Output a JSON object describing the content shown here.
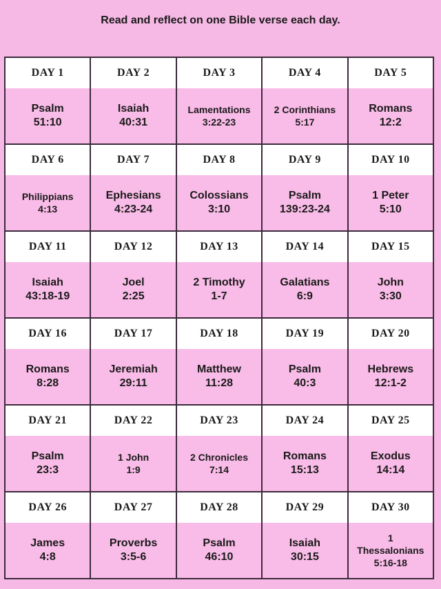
{
  "subtitle": "Read and reflect on one Bible verse each day.",
  "colors": {
    "background": "#f6b8e4",
    "cell": "#f9bbe7",
    "header": "#ffffff"
  },
  "days": [
    {
      "day": "DAY 1",
      "book": "Psalm",
      "ref": "51:10"
    },
    {
      "day": "DAY 2",
      "book": "Isaiah",
      "ref": "40:31"
    },
    {
      "day": "DAY 3",
      "book": "Lamentations",
      "ref": "3:22-23"
    },
    {
      "day": "DAY 4",
      "book": "2 Corinthians",
      "ref": "5:17"
    },
    {
      "day": "DAY 5",
      "book": "Romans",
      "ref": "12:2"
    },
    {
      "day": "DAY 6",
      "book": "Philippians",
      "ref": "4:13"
    },
    {
      "day": "DAY 7",
      "book": "Ephesians",
      "ref": "4:23-24"
    },
    {
      "day": "DAY 8",
      "book": "Colossians",
      "ref": "3:10"
    },
    {
      "day": "DAY 9",
      "book": "Psalm",
      "ref": "139:23-24"
    },
    {
      "day": "DAY 10",
      "book": "1 Peter",
      "ref": "5:10"
    },
    {
      "day": "DAY 11",
      "book": "Isaiah",
      "ref": "43:18-19"
    },
    {
      "day": "DAY 12",
      "book": "Joel",
      "ref": "2:25"
    },
    {
      "day": "DAY 13",
      "book": "2 Timothy",
      "ref": "1-7"
    },
    {
      "day": "DAY 14",
      "book": "Galatians",
      "ref": "6:9"
    },
    {
      "day": "DAY 15",
      "book": "John",
      "ref": "3:30"
    },
    {
      "day": "DAY 16",
      "book": "Romans",
      "ref": "8:28"
    },
    {
      "day": "DAY 17",
      "book": "Jeremiah",
      "ref": "29:11"
    },
    {
      "day": "DAY 18",
      "book": "Matthew",
      "ref": "11:28"
    },
    {
      "day": "DAY 19",
      "book": "Psalm",
      "ref": "40:3"
    },
    {
      "day": "DAY 20",
      "book": "Hebrews",
      "ref": "12:1-2"
    },
    {
      "day": "DAY 21",
      "book": "Psalm",
      "ref": "23:3"
    },
    {
      "day": "DAY 22",
      "book": "1 John",
      "ref": "1:9"
    },
    {
      "day": "DAY 23",
      "book": "2 Chronicles",
      "ref": "7:14"
    },
    {
      "day": "DAY 24",
      "book": "Romans",
      "ref": "15:13"
    },
    {
      "day": "DAY 25",
      "book": "Exodus",
      "ref": "14:14"
    },
    {
      "day": "DAY 26",
      "book": "James",
      "ref": "4:8"
    },
    {
      "day": "DAY 27",
      "book": "Proverbs",
      "ref": "3:5-6"
    },
    {
      "day": "DAY 28",
      "book": "Psalm",
      "ref": "46:10"
    },
    {
      "day": "DAY 29",
      "book": "Isaiah",
      "ref": "30:15"
    },
    {
      "day": "DAY 30",
      "book": "1 Thessalonians",
      "ref": "5:16-18"
    }
  ]
}
